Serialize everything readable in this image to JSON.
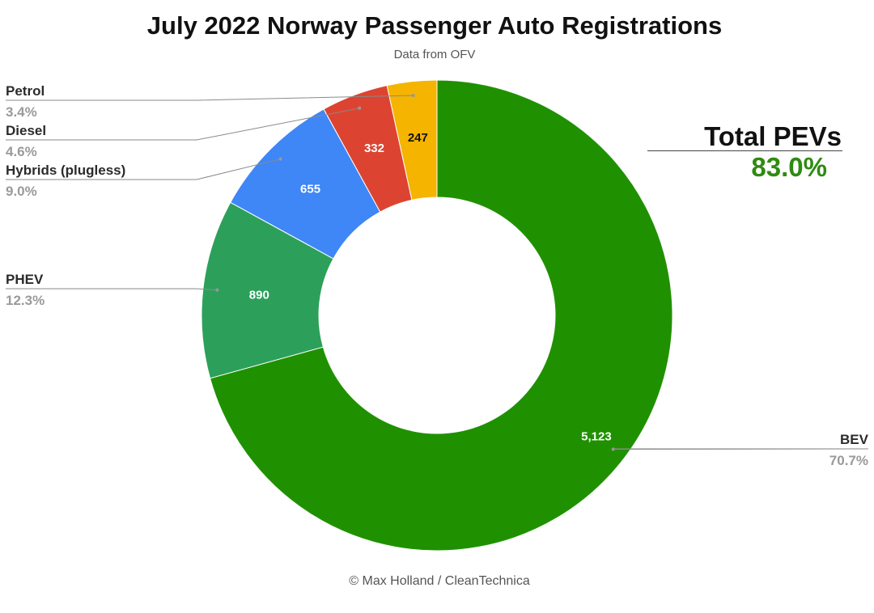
{
  "chart_data": {
    "type": "pie",
    "title": "July 2022 Norway Passenger Auto Registrations",
    "subtitle": "Data from OFV",
    "categories": [
      "BEV",
      "PHEV",
      "Hybrids (plugless)",
      "Diesel",
      "Petrol"
    ],
    "values": [
      5123,
      890,
      655,
      332,
      247
    ],
    "percent_labels": [
      "70.7%",
      "12.3%",
      "9.0%",
      "4.6%",
      "3.4%"
    ],
    "value_labels": [
      "5,123",
      "890",
      "655",
      "332",
      "247"
    ],
    "colors": [
      "#1f9100",
      "#2ca05a",
      "#3f86f7",
      "#dc4431",
      "#f4b400"
    ],
    "donut": true,
    "start": "top",
    "direction": "clockwise"
  },
  "annotation": {
    "label": "Total PEVs",
    "value": "83.0%",
    "value_color": "#2e8b10"
  },
  "credit": "© Max Holland / CleanTechnica"
}
